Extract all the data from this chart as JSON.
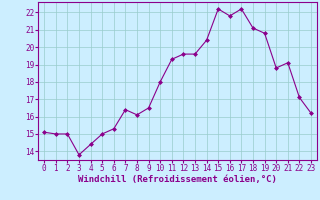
{
  "x": [
    0,
    1,
    2,
    3,
    4,
    5,
    6,
    7,
    8,
    9,
    10,
    11,
    12,
    13,
    14,
    15,
    16,
    17,
    18,
    19,
    20,
    21,
    22,
    23
  ],
  "y": [
    15.1,
    15.0,
    15.0,
    13.8,
    14.4,
    15.0,
    15.3,
    16.4,
    16.1,
    16.5,
    18.0,
    19.3,
    19.6,
    19.6,
    20.4,
    22.2,
    21.8,
    22.2,
    21.1,
    20.8,
    18.8,
    19.1,
    17.1,
    16.2
  ],
  "line_color": "#8B008B",
  "marker": "D",
  "marker_size": 2.0,
  "bg_color": "#cceeff",
  "grid_color": "#99cccc",
  "xlabel": "Windchill (Refroidissement éolien,°C)",
  "ylim": [
    13.5,
    22.6
  ],
  "xlim": [
    -0.5,
    23.5
  ],
  "yticks": [
    14,
    15,
    16,
    17,
    18,
    19,
    20,
    21,
    22
  ],
  "xticks": [
    0,
    1,
    2,
    3,
    4,
    5,
    6,
    7,
    8,
    9,
    10,
    11,
    12,
    13,
    14,
    15,
    16,
    17,
    18,
    19,
    20,
    21,
    22,
    23
  ],
  "tick_fontsize": 5.5,
  "xlabel_fontsize": 6.5
}
